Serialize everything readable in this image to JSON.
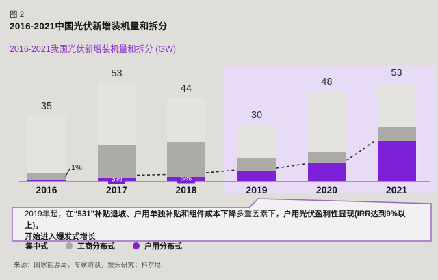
{
  "figure_label": "图 2",
  "title": "2016-2021中国光伏新增装机量和拆分",
  "subtitle": "2016-2021我国光伏新增装机量和拆分 (GW)",
  "colors": {
    "background": "#DFDEDB",
    "centralized": "#E4E3DF",
    "commercial": "#ACABA8",
    "residential": "#7C21D8",
    "highlight_band": "#E7DBF6",
    "subtitle_purple": "#8E2EC6",
    "callout_border": "#9A6BC2",
    "callout_fill": "#F2F0F3"
  },
  "chart_data": {
    "type": "bar",
    "stacked": true,
    "title": "2016-2021我国光伏新增装机量和拆分 (GW)",
    "unit": "GW",
    "categories": [
      "2016",
      "2017",
      "2018",
      "2019",
      "2020",
      "2021"
    ],
    "totals_gw": [
      35,
      53,
      44,
      30,
      48,
      53
    ],
    "series": [
      {
        "name": "集中式",
        "values_pct": [
          88,
          63,
          53,
          59,
          68,
          45
        ]
      },
      {
        "name": "工商分布式",
        "values_pct": [
          11,
          33,
          43,
          23,
          11,
          14
        ]
      },
      {
        "name": "户用分布式",
        "values_pct": [
          1,
          3,
          5,
          18,
          21,
          41
        ]
      }
    ],
    "highlighted_categories": [
      "2019",
      "2020",
      "2021"
    ],
    "residential_2016_outside_label": "1%",
    "trendline": "dashed line tracing tops of 户用分布式 segments",
    "legend_position": "bottom-left",
    "grid": false
  },
  "callout": {
    "segments": [
      {
        "text": "2019年起，在",
        "bold": false,
        "br_before": false
      },
      {
        "text": "“531”补贴退坡、户用单独补贴和组件成本下降",
        "bold": true,
        "br_before": false
      },
      {
        "text": "多重因素下，",
        "bold": false,
        "br_before": false
      },
      {
        "text": "户用光伏盈利性显现(IRR达到9%以上)，",
        "bold": true,
        "br_before": false
      },
      {
        "text": "开始进入爆发式增长",
        "bold": true,
        "br_before": true
      }
    ]
  },
  "legend": {
    "items": [
      {
        "label": "集中式",
        "color": "#DCDBD8"
      },
      {
        "label": "工商分布式",
        "color": "#A9A8A5"
      },
      {
        "label": "户用分布式",
        "color": "#7B22CE"
      }
    ]
  },
  "source": "来源：国家能源局，专家访谈，案头研究；科尔尼"
}
